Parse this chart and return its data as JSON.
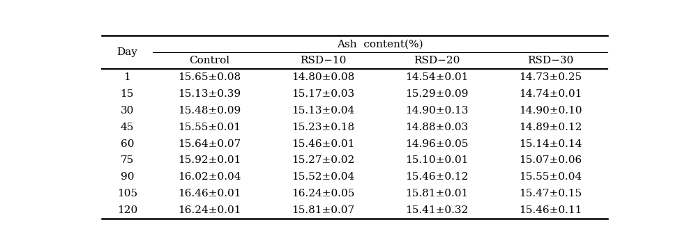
{
  "header_group": "Ash  content(%)",
  "subheaders": [
    "Control",
    "RSD−10",
    "RSD−20",
    "RSD−30"
  ],
  "data": [
    [
      "1",
      "15.65±0.08",
      "14.80±0.08",
      "14.54±0.01",
      "14.73±0.25"
    ],
    [
      "15",
      "15.13±0.39",
      "15.17±0.03",
      "15.29±0.09",
      "14.74±0.01"
    ],
    [
      "30",
      "15.48±0.09",
      "15.13±0.04",
      "14.90±0.13",
      "14.90±0.10"
    ],
    [
      "45",
      "15.55±0.01",
      "15.23±0.18",
      "14.88±0.03",
      "14.89±0.12"
    ],
    [
      "60",
      "15.64±0.07",
      "15.46±0.01",
      "14.96±0.05",
      "15.14±0.14"
    ],
    [
      "75",
      "15.92±0.01",
      "15.27±0.02",
      "15.10±0.01",
      "15.07±0.06"
    ],
    [
      "90",
      "16.02±0.04",
      "15.52±0.04",
      "15.46±0.12",
      "15.55±0.04"
    ],
    [
      "105",
      "16.46±0.01",
      "16.24±0.05",
      "15.81±0.01",
      "15.47±0.15"
    ],
    [
      "120",
      "16.24±0.01",
      "15.81±0.07",
      "15.41±0.32",
      "15.46±0.11"
    ]
  ],
  "bg_color": "#ffffff",
  "text_color": "#000000",
  "line_color": "#000000",
  "font_size": 11
}
